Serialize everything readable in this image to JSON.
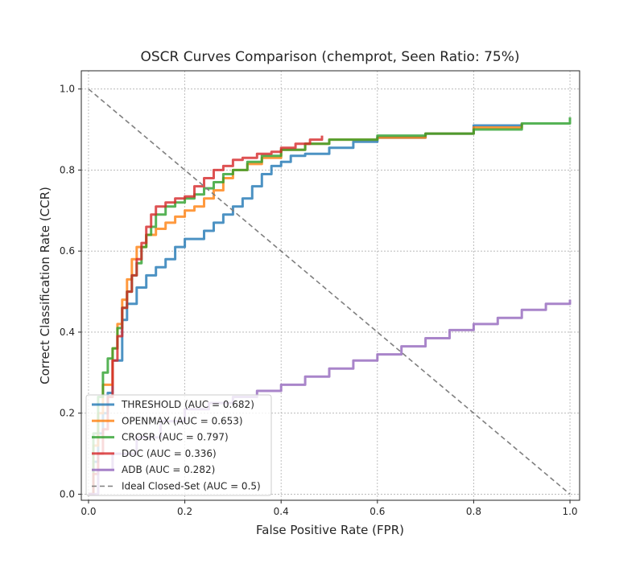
{
  "chart_data": {
    "type": "line",
    "title": "OSCR Curves Comparison (chemprot, Seen Ratio: 75%)",
    "xlabel": "False Positive Rate (FPR)",
    "ylabel": "Correct Classification Rate (CCR)",
    "xlim": [
      -0.015,
      1.02
    ],
    "ylim": [
      -0.015,
      1.045
    ],
    "xticks": [
      "0.0",
      "0.2",
      "0.4",
      "0.6",
      "0.8",
      "1.0"
    ],
    "yticks": [
      "0.0",
      "0.2",
      "0.4",
      "0.6",
      "0.8",
      "1.0"
    ],
    "grid": true,
    "legend_position": "lower-left",
    "series": [
      {
        "name": "THRESHOLD (AUC = 0.682)",
        "color": "#1f77b4",
        "style": "solid",
        "points": [
          [
            0.0,
            0.0
          ],
          [
            0.01,
            0.08
          ],
          [
            0.02,
            0.15
          ],
          [
            0.03,
            0.2
          ],
          [
            0.04,
            0.25
          ],
          [
            0.05,
            0.33
          ],
          [
            0.07,
            0.43
          ],
          [
            0.08,
            0.47
          ],
          [
            0.1,
            0.51
          ],
          [
            0.12,
            0.54
          ],
          [
            0.14,
            0.56
          ],
          [
            0.16,
            0.58
          ],
          [
            0.18,
            0.61
          ],
          [
            0.2,
            0.63
          ],
          [
            0.24,
            0.65
          ],
          [
            0.26,
            0.67
          ],
          [
            0.28,
            0.69
          ],
          [
            0.3,
            0.71
          ],
          [
            0.32,
            0.73
          ],
          [
            0.34,
            0.76
          ],
          [
            0.36,
            0.79
          ],
          [
            0.38,
            0.81
          ],
          [
            0.4,
            0.82
          ],
          [
            0.42,
            0.835
          ],
          [
            0.45,
            0.84
          ],
          [
            0.5,
            0.855
          ],
          [
            0.55,
            0.87
          ],
          [
            0.6,
            0.88
          ],
          [
            0.7,
            0.89
          ],
          [
            0.8,
            0.91
          ],
          [
            0.9,
            0.915
          ]
        ]
      },
      {
        "name": "OPENMAX (AUC = 0.653)",
        "color": "#ff7f0e",
        "style": "solid",
        "points": [
          [
            0.0,
            0.0
          ],
          [
            0.01,
            0.12
          ],
          [
            0.02,
            0.2
          ],
          [
            0.03,
            0.27
          ],
          [
            0.05,
            0.36
          ],
          [
            0.06,
            0.42
          ],
          [
            0.07,
            0.48
          ],
          [
            0.08,
            0.53
          ],
          [
            0.09,
            0.58
          ],
          [
            0.1,
            0.61
          ],
          [
            0.12,
            0.64
          ],
          [
            0.14,
            0.655
          ],
          [
            0.16,
            0.67
          ],
          [
            0.18,
            0.685
          ],
          [
            0.2,
            0.7
          ],
          [
            0.22,
            0.71
          ],
          [
            0.24,
            0.73
          ],
          [
            0.26,
            0.75
          ],
          [
            0.28,
            0.78
          ],
          [
            0.3,
            0.8
          ],
          [
            0.33,
            0.815
          ],
          [
            0.36,
            0.83
          ],
          [
            0.4,
            0.85
          ],
          [
            0.45,
            0.865
          ],
          [
            0.5,
            0.875
          ],
          [
            0.6,
            0.88
          ],
          [
            0.7,
            0.89
          ],
          [
            0.8,
            0.905
          ],
          [
            0.9,
            0.915
          ]
        ]
      },
      {
        "name": "CROSR (AUC = 0.797)",
        "color": "#2ca02c",
        "style": "solid",
        "points": [
          [
            0.0,
            0.0
          ],
          [
            0.01,
            0.15
          ],
          [
            0.02,
            0.24
          ],
          [
            0.03,
            0.3
          ],
          [
            0.04,
            0.335
          ],
          [
            0.05,
            0.36
          ],
          [
            0.06,
            0.41
          ],
          [
            0.07,
            0.46
          ],
          [
            0.08,
            0.5
          ],
          [
            0.09,
            0.54
          ],
          [
            0.1,
            0.57
          ],
          [
            0.11,
            0.61
          ],
          [
            0.12,
            0.64
          ],
          [
            0.13,
            0.66
          ],
          [
            0.14,
            0.69
          ],
          [
            0.16,
            0.71
          ],
          [
            0.18,
            0.72
          ],
          [
            0.2,
            0.73
          ],
          [
            0.22,
            0.74
          ],
          [
            0.24,
            0.755
          ],
          [
            0.26,
            0.77
          ],
          [
            0.28,
            0.79
          ],
          [
            0.3,
            0.8
          ],
          [
            0.33,
            0.82
          ],
          [
            0.36,
            0.835
          ],
          [
            0.4,
            0.85
          ],
          [
            0.45,
            0.865
          ],
          [
            0.5,
            0.875
          ],
          [
            0.6,
            0.885
          ],
          [
            0.7,
            0.89
          ],
          [
            0.8,
            0.9
          ],
          [
            0.9,
            0.915
          ],
          [
            1.0,
            0.93
          ]
        ]
      },
      {
        "name": "DOC (AUC = 0.336)",
        "color": "#d62728",
        "style": "solid",
        "points": [
          [
            0.0,
            0.0
          ],
          [
            0.01,
            0.05
          ],
          [
            0.02,
            0.1
          ],
          [
            0.03,
            0.16
          ],
          [
            0.04,
            0.24
          ],
          [
            0.05,
            0.33
          ],
          [
            0.06,
            0.39
          ],
          [
            0.07,
            0.46
          ],
          [
            0.08,
            0.5
          ],
          [
            0.09,
            0.54
          ],
          [
            0.1,
            0.58
          ],
          [
            0.11,
            0.62
          ],
          [
            0.12,
            0.66
          ],
          [
            0.13,
            0.69
          ],
          [
            0.14,
            0.71
          ],
          [
            0.16,
            0.72
          ],
          [
            0.18,
            0.73
          ],
          [
            0.2,
            0.735
          ],
          [
            0.22,
            0.76
          ],
          [
            0.24,
            0.78
          ],
          [
            0.26,
            0.8
          ],
          [
            0.28,
            0.81
          ],
          [
            0.3,
            0.825
          ],
          [
            0.32,
            0.83
          ],
          [
            0.35,
            0.84
          ],
          [
            0.38,
            0.845
          ],
          [
            0.4,
            0.855
          ],
          [
            0.43,
            0.865
          ],
          [
            0.46,
            0.875
          ],
          [
            0.485,
            0.885
          ]
        ]
      },
      {
        "name": "ADB (AUC = 0.282)",
        "color": "#9467bd",
        "style": "solid",
        "points": [
          [
            0.0,
            0.0
          ],
          [
            0.02,
            0.06
          ],
          [
            0.05,
            0.1
          ],
          [
            0.1,
            0.14
          ],
          [
            0.15,
            0.18
          ],
          [
            0.2,
            0.21
          ],
          [
            0.25,
            0.225
          ],
          [
            0.3,
            0.24
          ],
          [
            0.35,
            0.255
          ],
          [
            0.4,
            0.27
          ],
          [
            0.45,
            0.29
          ],
          [
            0.5,
            0.31
          ],
          [
            0.55,
            0.33
          ],
          [
            0.6,
            0.345
          ],
          [
            0.65,
            0.365
          ],
          [
            0.7,
            0.385
          ],
          [
            0.75,
            0.405
          ],
          [
            0.8,
            0.42
          ],
          [
            0.85,
            0.435
          ],
          [
            0.9,
            0.455
          ],
          [
            0.95,
            0.47
          ],
          [
            1.0,
            0.48
          ]
        ]
      },
      {
        "name": "Ideal Closed-Set (AUC = 0.5)",
        "color": "#7f7f7f",
        "style": "dashed",
        "points": [
          [
            0.0,
            1.0
          ],
          [
            1.0,
            0.0
          ]
        ]
      }
    ]
  }
}
